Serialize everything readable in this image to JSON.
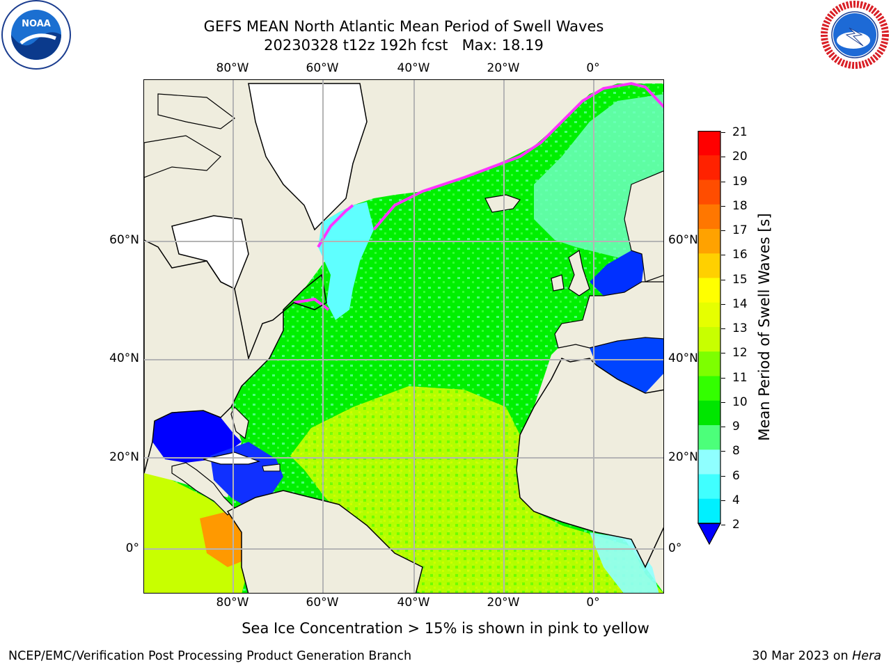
{
  "header": {
    "title_line1": "GEFS MEAN North Atlantic Mean Period of Swell Waves",
    "title_line2": "20230328 t12z 192h fcst   Max: 18.19"
  },
  "logos": {
    "left_icon": "noaa-logo-icon",
    "left_text": "NOAA",
    "right_icon": "nws-logo-icon",
    "right_text": "NATIONAL WEATHER SERVICE"
  },
  "map": {
    "lon_ticks": [
      "80°W",
      "60°W",
      "40°W",
      "20°W",
      "0°"
    ],
    "lat_ticks": [
      "60°N",
      "40°N",
      "20°N",
      "0°"
    ],
    "projection_note": "",
    "ocean_colors": {
      "blue": "#0000ff",
      "cyan": "#00ffff",
      "light_cyan": "#8fffff",
      "green": "#00ff00",
      "pale_green": "#4cff7a",
      "yellow_green": "#c8ff00",
      "orange": "#ff8c00",
      "ice_pink": "#ff33ff",
      "land": "#efedde"
    }
  },
  "colorbar": {
    "label": "Mean Period of Swell Waves [s]",
    "ticks": [
      "21",
      "20",
      "19",
      "18",
      "17",
      "16",
      "15",
      "14",
      "13",
      "12",
      "11",
      "10",
      "9",
      "8",
      "6",
      "4",
      "2"
    ],
    "colors": [
      "#ff0000",
      "#ff2200",
      "#ff4d00",
      "#ff7700",
      "#ffa200",
      "#ffd000",
      "#ffff00",
      "#e6ff00",
      "#c8ff00",
      "#7dff00",
      "#33ff00",
      "#00e600",
      "#4cff7a",
      "#8fffff",
      "#40ffff",
      "#00f0ff",
      "#0080ff"
    ],
    "extend_color": "#0000ff"
  },
  "footer": {
    "note": "Sea Ice Concentration > 15% is shown in pink to yellow",
    "credit_left": "NCEP/EMC/Verification Post Processing Product Generation Branch",
    "credit_right_date": "30 Mar 2023 on ",
    "credit_right_host": "Hera"
  }
}
